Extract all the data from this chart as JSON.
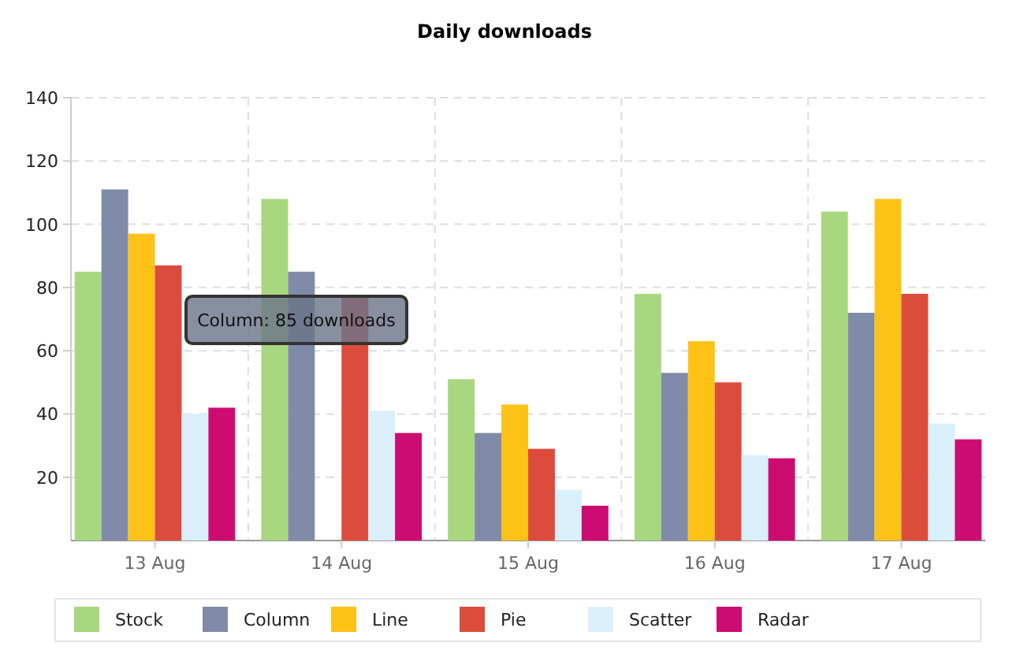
{
  "chart_data": {
    "type": "bar",
    "title": "Daily downloads",
    "categories": [
      "13 Aug",
      "14 Aug",
      "15 Aug",
      "16 Aug",
      "17 Aug"
    ],
    "series": [
      {
        "name": "Stock",
        "color": "#a8d77f",
        "values": [
          85,
          108,
          51,
          78,
          104
        ]
      },
      {
        "name": "Column",
        "color": "#7f8ba8",
        "values": [
          111,
          85,
          34,
          53,
          72
        ]
      },
      {
        "name": "Line",
        "color": "#fec216",
        "values": [
          97,
          null,
          43,
          63,
          108
        ]
      },
      {
        "name": "Pie",
        "color": "#dc4c3c",
        "values": [
          87,
          77,
          29,
          50,
          78
        ]
      },
      {
        "name": "Scatter",
        "color": "#d9effa",
        "values": [
          40,
          41,
          16,
          27,
          37
        ]
      },
      {
        "name": "Radar",
        "color": "#cc0c70",
        "values": [
          42,
          34,
          11,
          26,
          32
        ]
      }
    ],
    "ylim": [
      0,
      140
    ],
    "yticks": [
      20,
      40,
      60,
      80,
      100,
      120,
      140
    ],
    "grid": true,
    "legend": "bottom",
    "annotations": [
      "Column: 85 downloads"
    ]
  }
}
